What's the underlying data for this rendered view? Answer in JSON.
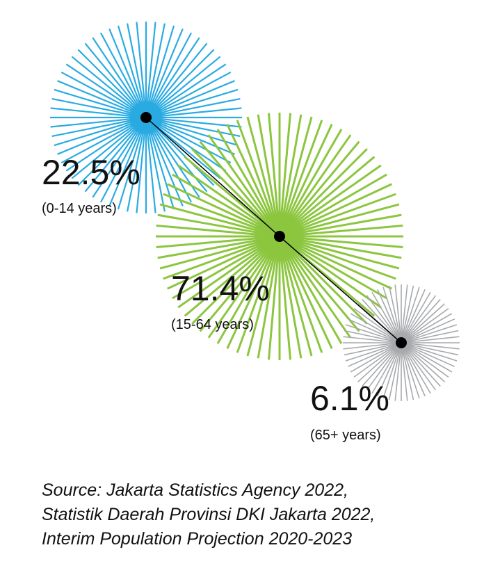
{
  "chart_data": {
    "type": "bubble",
    "title": "",
    "series": [
      {
        "name": "(0-14 years)",
        "value": 22.5,
        "label": "22.5%",
        "color": "#29abe2"
      },
      {
        "name": "(15-64 years)",
        "value": 71.4,
        "label": "71.4%",
        "color": "#8cc63f"
      },
      {
        "name": "(65+ years)",
        "value": 6.1,
        "label": "6.1%",
        "color": "#a7a9ac"
      }
    ],
    "connector_color": "#000000"
  },
  "source": {
    "lines": [
      "Source: Jakarta Statistics Agency 2022,",
      "Statistik Daerah Provinsi DKI Jakarta 2022,",
      "Interim Population Projection 2020-2023"
    ]
  }
}
